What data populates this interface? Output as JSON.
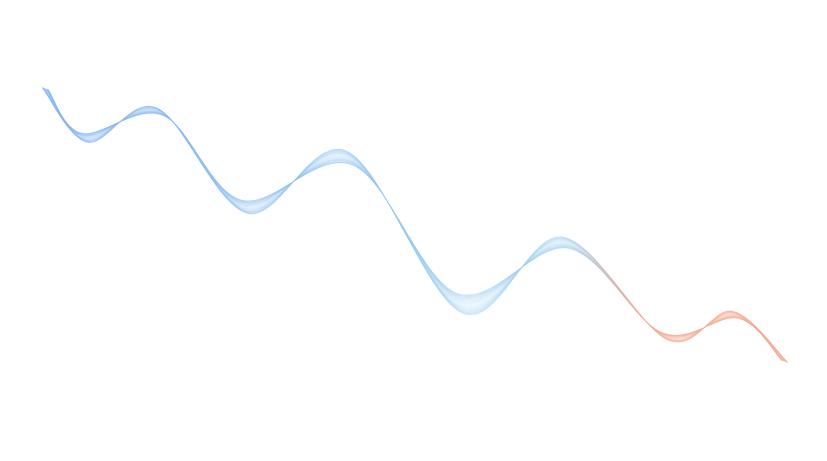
{
  "artwork": {
    "type": "decorative-wave-lines",
    "colors": {
      "start": "#7fb0f0",
      "middle": "#9cd0f2",
      "end": "#f2a890",
      "background": "#ffffff"
    }
  }
}
